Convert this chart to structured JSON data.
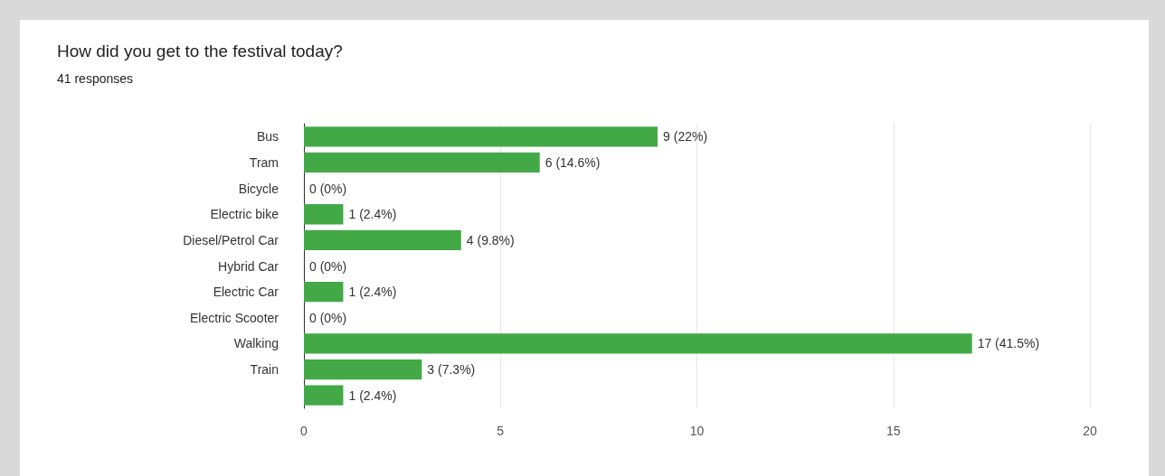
{
  "chart_data": {
    "type": "bar",
    "orientation": "horizontal",
    "title": "How did you get to the festival today?",
    "subtitle": "41 responses",
    "categories": [
      "Bus",
      "Tram",
      "Bicycle",
      "Electric bike",
      "Diesel/Petrol Car",
      "Hybrid Car",
      "Electric Car",
      "Electric Scooter",
      "Walking",
      "Train",
      null
    ],
    "values": [
      9,
      6,
      0,
      1,
      4,
      0,
      1,
      0,
      17,
      3,
      1
    ],
    "value_labels": [
      "9 (22%)",
      "6 (14.6%)",
      "0 (0%)",
      "1 (2.4%)",
      "4 (9.8%)",
      "0 (0%)",
      "1 (2.4%)",
      "0 (0%)",
      "17 (41.5%)",
      "3 (7.3%)",
      "1 (2.4%)"
    ],
    "color": "#43a947",
    "xlim": [
      0,
      20
    ],
    "xticks": [
      0,
      5,
      10,
      15,
      20
    ],
    "grid": "x"
  }
}
